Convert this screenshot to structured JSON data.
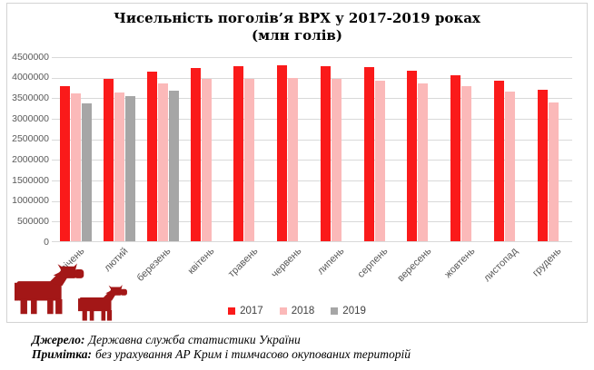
{
  "title": {
    "line1": "Чисельність поголів’я ВРХ у 2017-2019 роках",
    "line2": "(млн голів)"
  },
  "chart_data": {
    "type": "bar",
    "title": "Чисельність поголів’я ВРХ у 2017-2019 роках (млн голів)",
    "categories": [
      "січень",
      "лютий",
      "березень",
      "квітень",
      "травень",
      "червень",
      "липень",
      "серпень",
      "вересень",
      "жовтень",
      "листопад",
      "грудень"
    ],
    "series": [
      {
        "name": "2017",
        "color": "#FA1A1A",
        "values": [
          3770000,
          3950000,
          4120000,
          4210000,
          4250000,
          4280000,
          4250000,
          4230000,
          4140000,
          4030000,
          3900000,
          3680000
        ]
      },
      {
        "name": "2018",
        "color": "#FBB9B9",
        "values": [
          3590000,
          3620000,
          3850000,
          3940000,
          3960000,
          3970000,
          3950000,
          3910000,
          3850000,
          3770000,
          3630000,
          3370000
        ]
      },
      {
        "name": "2019",
        "color": "#A6A6A6",
        "values": [
          3360000,
          3530000,
          3660000,
          null,
          null,
          null,
          null,
          null,
          null,
          null,
          null,
          null
        ]
      }
    ],
    "ylim": [
      0,
      4500000
    ],
    "ytick_step": 500000,
    "grid": true,
    "legend_position": "bottom",
    "xlabel": "",
    "ylabel": ""
  },
  "footer": {
    "source_label": "Джерело:",
    "source_text": "Державна служба статистики України",
    "note_label": "Примітка:",
    "note_text": "без урахування АР Крим і тимчасово окупованих територій"
  },
  "colors": {
    "grid": "#D9D9D9",
    "axis_text": "#595959",
    "box_border": "#D3D3D3",
    "cow": "#A31717",
    "title_text": "#000000"
  }
}
